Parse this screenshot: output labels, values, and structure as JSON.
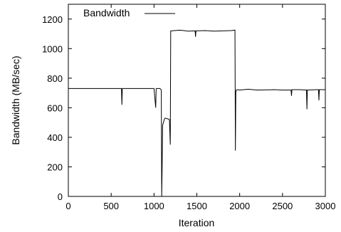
{
  "chart_data": {
    "type": "line",
    "xlabel": "Iteration",
    "ylabel": "Bandwidth (MB/sec)",
    "xlim": [
      0,
      3000
    ],
    "ylim": [
      0,
      1300
    ],
    "xticks": [
      0,
      500,
      1000,
      1500,
      2000,
      2500,
      3000
    ],
    "yticks": [
      0,
      200,
      400,
      600,
      800,
      1000,
      1200
    ],
    "xtick_labels": [
      "0",
      "500",
      "1000",
      "1500",
      "2000",
      "2500",
      "3000"
    ],
    "ytick_labels": [
      "0",
      "200",
      "400",
      "600",
      "800",
      "1000",
      "1200"
    ],
    "grid": false,
    "legend_position": "top-left",
    "series": [
      {
        "name": "Bandwidth",
        "color": "#000000",
        "x": [
          0,
          200,
          400,
          620,
          625,
          630,
          800,
          1000,
          1020,
          1025,
          1040,
          1070,
          1085,
          1090,
          1095,
          1100,
          1120,
          1130,
          1160,
          1180,
          1190,
          1195,
          1200,
          1300,
          1400,
          1480,
          1485,
          1490,
          1600,
          1700,
          1800,
          1900,
          1945,
          1950,
          1955,
          1960,
          1970,
          2000,
          2100,
          2200,
          2400,
          2500,
          2600,
          2605,
          2610,
          2700,
          2780,
          2785,
          2790,
          2900,
          2920,
          2925,
          2930,
          3000
        ],
        "y": [
          730,
          730,
          730,
          730,
          620,
          730,
          730,
          730,
          600,
          730,
          730,
          730,
          720,
          0,
          200,
          480,
          520,
          530,
          525,
          520,
          350,
          1120,
          1120,
          1125,
          1118,
          1120,
          1080,
          1120,
          1122,
          1118,
          1120,
          1122,
          1125,
          310,
          700,
          720,
          722,
          720,
          725,
          720,
          722,
          720,
          720,
          680,
          722,
          722,
          720,
          590,
          720,
          722,
          722,
          650,
          722,
          722
        ]
      }
    ]
  }
}
